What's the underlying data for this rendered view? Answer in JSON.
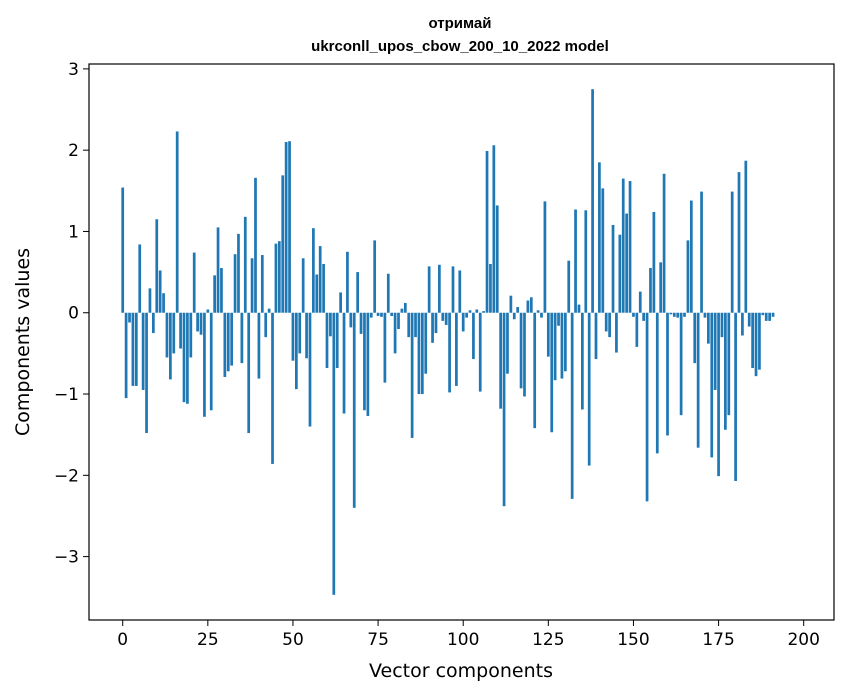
{
  "chart_data": {
    "type": "bar",
    "title": "отримай",
    "subtitle": "ukrconll_upos_cbow_200_10_2022 model",
    "xlabel": "Vector components",
    "ylabel": "Components values",
    "xlim": [
      -9.9,
      208.9
    ],
    "ylim": [
      -3.78,
      3.06
    ],
    "xticks": [
      0,
      25,
      50,
      75,
      100,
      125,
      150,
      175,
      200
    ],
    "yticks": [
      -3,
      -2,
      -1,
      0,
      1,
      2,
      3
    ],
    "grid": false,
    "bar_color": "#1f77b4",
    "values": [
      1.54,
      -1.05,
      -0.12,
      -0.9,
      -0.9,
      0.84,
      -0.95,
      -1.48,
      0.3,
      -0.25,
      1.15,
      0.52,
      0.24,
      -0.55,
      -0.82,
      -0.5,
      2.23,
      -0.44,
      -1.1,
      -1.12,
      -0.55,
      0.74,
      -0.23,
      -0.27,
      -1.28,
      0.04,
      -1.2,
      0.46,
      1.05,
      0.55,
      -0.79,
      -0.72,
      -0.65,
      0.72,
      0.97,
      -0.62,
      1.18,
      -1.48,
      0.67,
      1.66,
      -0.81,
      0.71,
      -0.3,
      0.05,
      -1.86,
      0.85,
      0.88,
      1.69,
      2.1,
      2.11,
      -0.59,
      -0.94,
      -0.5,
      0.67,
      -0.56,
      -1.4,
      1.04,
      0.47,
      0.82,
      0.6,
      -0.68,
      -0.29,
      -3.47,
      -0.68,
      0.25,
      -1.24,
      0.75,
      -0.18,
      -2.4,
      0.5,
      -0.26,
      -1.2,
      -1.27,
      -0.06,
      0.89,
      -0.04,
      -0.05,
      -0.86,
      0.48,
      -0.04,
      -0.5,
      -0.2,
      0.05,
      0.12,
      -0.3,
      -1.54,
      -0.3,
      -1.0,
      -1.0,
      -0.75,
      0.57,
      -0.37,
      -0.25,
      0.59,
      -0.1,
      -0.15,
      -0.98,
      0.57,
      -0.9,
      0.52,
      -0.23,
      -0.06,
      0.03,
      -0.57,
      0.04,
      -0.97,
      0.02,
      1.99,
      0.6,
      2.06,
      1.32,
      -1.18,
      -2.38,
      -0.75,
      0.21,
      -0.08,
      0.07,
      -0.93,
      -1.03,
      0.15,
      0.19,
      -1.42,
      0.03,
      -0.06,
      1.37,
      -0.54,
      -1.47,
      -0.83,
      -0.16,
      -0.81,
      -0.72,
      0.64,
      -2.29,
      1.27,
      0.1,
      -1.19,
      1.26,
      -1.88,
      2.75,
      -0.57,
      1.85,
      1.53,
      -0.23,
      -0.3,
      1.08,
      -0.49,
      0.96,
      1.65,
      1.22,
      1.62,
      -0.05,
      -0.42,
      0.26,
      -0.1,
      -2.32,
      0.55,
      1.24,
      -1.73,
      0.62,
      1.71,
      -1.51,
      -0.02,
      -0.05,
      -0.06,
      -1.26,
      -0.05,
      0.89,
      1.38,
      -0.62,
      -1.66,
      1.49,
      -0.06,
      -0.38,
      -1.78,
      -0.95,
      -2.01,
      -0.3,
      -1.44,
      -1.26,
      1.49,
      -2.07,
      1.73,
      -0.28,
      1.87,
      -0.17,
      -0.68,
      -0.78,
      -0.7,
      -0.03,
      -0.1,
      -0.1,
      -0.05
    ]
  }
}
